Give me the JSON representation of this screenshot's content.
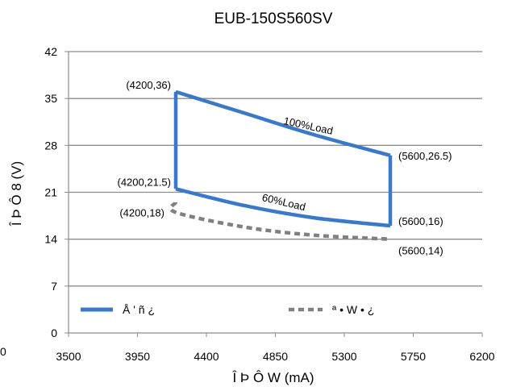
{
  "chart_data": {
    "type": "line",
    "title": "EUB-150S560SV",
    "xlabel": "Î Þ Ô W (mA)",
    "ylabel": "Î Þ Ô 8  (V)",
    "xlim": [
      3500,
      6200
    ],
    "ylim": [
      0,
      42
    ],
    "x_ticks": [
      "3500",
      "3950",
      "4400",
      "4850",
      "5300",
      "5750",
      "6200"
    ],
    "y_ticks": [
      "0",
      "7",
      "14",
      "21",
      "28",
      "35",
      "42"
    ],
    "stray_label": "0",
    "grid": true,
    "series": [
      {
        "name": "Å  ' ñ  ¿",
        "color": "#3a78c9",
        "style": "solid",
        "segments": [
          [
            [
              4200,
              36
            ],
            [
              4650,
              32.8
            ],
            [
              5100,
              29.6
            ],
            [
              5600,
              26.5
            ]
          ],
          [
            [
              4200,
              21.5
            ],
            [
              4650,
              19.0
            ],
            [
              5100,
              17.2
            ],
            [
              5600,
              16
            ]
          ],
          [
            [
              4200,
              21.5
            ],
            [
              4200,
              36
            ]
          ],
          [
            [
              5600,
              16
            ],
            [
              5600,
              26.5
            ]
          ]
        ]
      },
      {
        "name": "ª • W •  ¿",
        "color": "#808080",
        "style": "dashed",
        "segments": [
          [
            [
              4200,
              19.5
            ],
            [
              4200,
              18
            ],
            [
              4650,
              15.8
            ],
            [
              5100,
              14.6
            ],
            [
              5600,
              14
            ]
          ]
        ]
      }
    ],
    "annotations": [
      {
        "text": "(4200,36)",
        "x": 4200,
        "y": 36,
        "anchor": "end",
        "dx": -6,
        "dy": -4
      },
      {
        "text": "(4200,21.5)",
        "x": 4200,
        "y": 21.5,
        "anchor": "end",
        "dx": -6,
        "dy": -4
      },
      {
        "text": "(4200,18)",
        "x": 4200,
        "y": 18,
        "anchor": "end",
        "dx": -14,
        "dy": 5
      },
      {
        "text": "(5600,26.5)",
        "x": 5600,
        "y": 26.5,
        "anchor": "start",
        "dx": 10,
        "dy": 5
      },
      {
        "text": "(5600,16)",
        "x": 5600,
        "y": 16,
        "anchor": "start",
        "dx": 10,
        "dy": -1
      },
      {
        "text": "(5600,14)",
        "x": 5600,
        "y": 14,
        "anchor": "start",
        "dx": 10,
        "dy": 19
      }
    ],
    "curve_labels": [
      {
        "text": "100%Load",
        "x": 5060,
        "y": 30.4,
        "rotate": 12
      },
      {
        "text": "60%Load",
        "x": 4900,
        "y": 19.0,
        "rotate": 13
      }
    ],
    "legend_placement": "bottom"
  }
}
